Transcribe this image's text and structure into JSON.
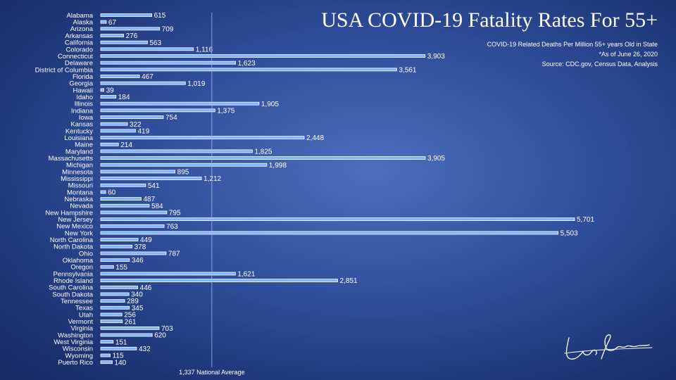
{
  "chart_data": {
    "type": "bar",
    "orientation": "horizontal",
    "title": "USA COVID-19 Fatality Rates For 55+",
    "subtitle_lines": [
      "COVID-19 Related Deaths Per Million 55+ years Old in State",
      "*As of  June 26, 2020",
      "Source: CDC.gov, Census Data, Analysis"
    ],
    "categories": [
      "Alabama",
      "Alaska",
      "Arizona",
      "Arkansas",
      "California",
      "Colorado",
      "Connecticut",
      "Delaware",
      "District of Columbia",
      "Florida",
      "Georgia",
      "Hawaii",
      "Idaho",
      "Illinois",
      "Indiana",
      "Iowa",
      "Kansas",
      "Kentucky",
      "Louisiana",
      "Maine",
      "Maryland",
      "Massachusetts",
      "Michigan",
      "Minnesota",
      "Mississippi",
      "Missouri",
      "Montana",
      "Nebraska",
      "Nevada",
      "New Hampshire",
      "New Jersey",
      "New Mexico",
      "New York",
      "North Carolina",
      "North Dakota",
      "Ohio",
      "Oklahoma",
      "Oregon",
      "Pennsylvania",
      "Rhode Island",
      "South Carolina",
      "South Dakota",
      "Tennessee",
      "Texas",
      "Utah",
      "Vermont",
      "Virginia",
      "Washington",
      "West Virginia",
      "Wisconsin",
      "Wyoming",
      "Puerto Rico"
    ],
    "values": [
      615,
      67,
      709,
      276,
      563,
      1116,
      3903,
      1623,
      3561,
      467,
      1019,
      39,
      184,
      1905,
      1375,
      754,
      322,
      419,
      2448,
      214,
      1825,
      3905,
      1998,
      895,
      1212,
      541,
      60,
      487,
      584,
      795,
      5701,
      763,
      5503,
      449,
      378,
      787,
      346,
      155,
      1621,
      2851,
      446,
      340,
      289,
      345,
      256,
      261,
      703,
      620,
      151,
      432,
      115,
      140
    ],
    "value_labels": [
      "615",
      "67",
      "709",
      "276",
      "563",
      "1,116",
      "3,903",
      "1,623",
      "3,561",
      "467",
      "1,019",
      "39",
      "184",
      "1,905",
      "1,375",
      "754",
      "322",
      "419",
      "2,448",
      "214",
      "1,825",
      "3,905",
      "1,998",
      "895",
      "1,212",
      "541",
      "60",
      "487",
      "584",
      "795",
      "5,701",
      "763",
      "5,503",
      "449",
      "378",
      "787",
      "346",
      "155",
      "1,621",
      "2,851",
      "446",
      "340",
      "289",
      "345",
      "256",
      "261",
      "703",
      "620",
      "151",
      "432",
      "115",
      "140"
    ],
    "reference_line": {
      "value": 1337,
      "label": "1,337 National Average"
    },
    "xlim": [
      0,
      5701
    ],
    "grid": false,
    "legend": "none",
    "colors": {
      "bar_fill": "#7fb2ff",
      "bar_outline": "#ffffff",
      "background": "#2f4e9a"
    }
  }
}
